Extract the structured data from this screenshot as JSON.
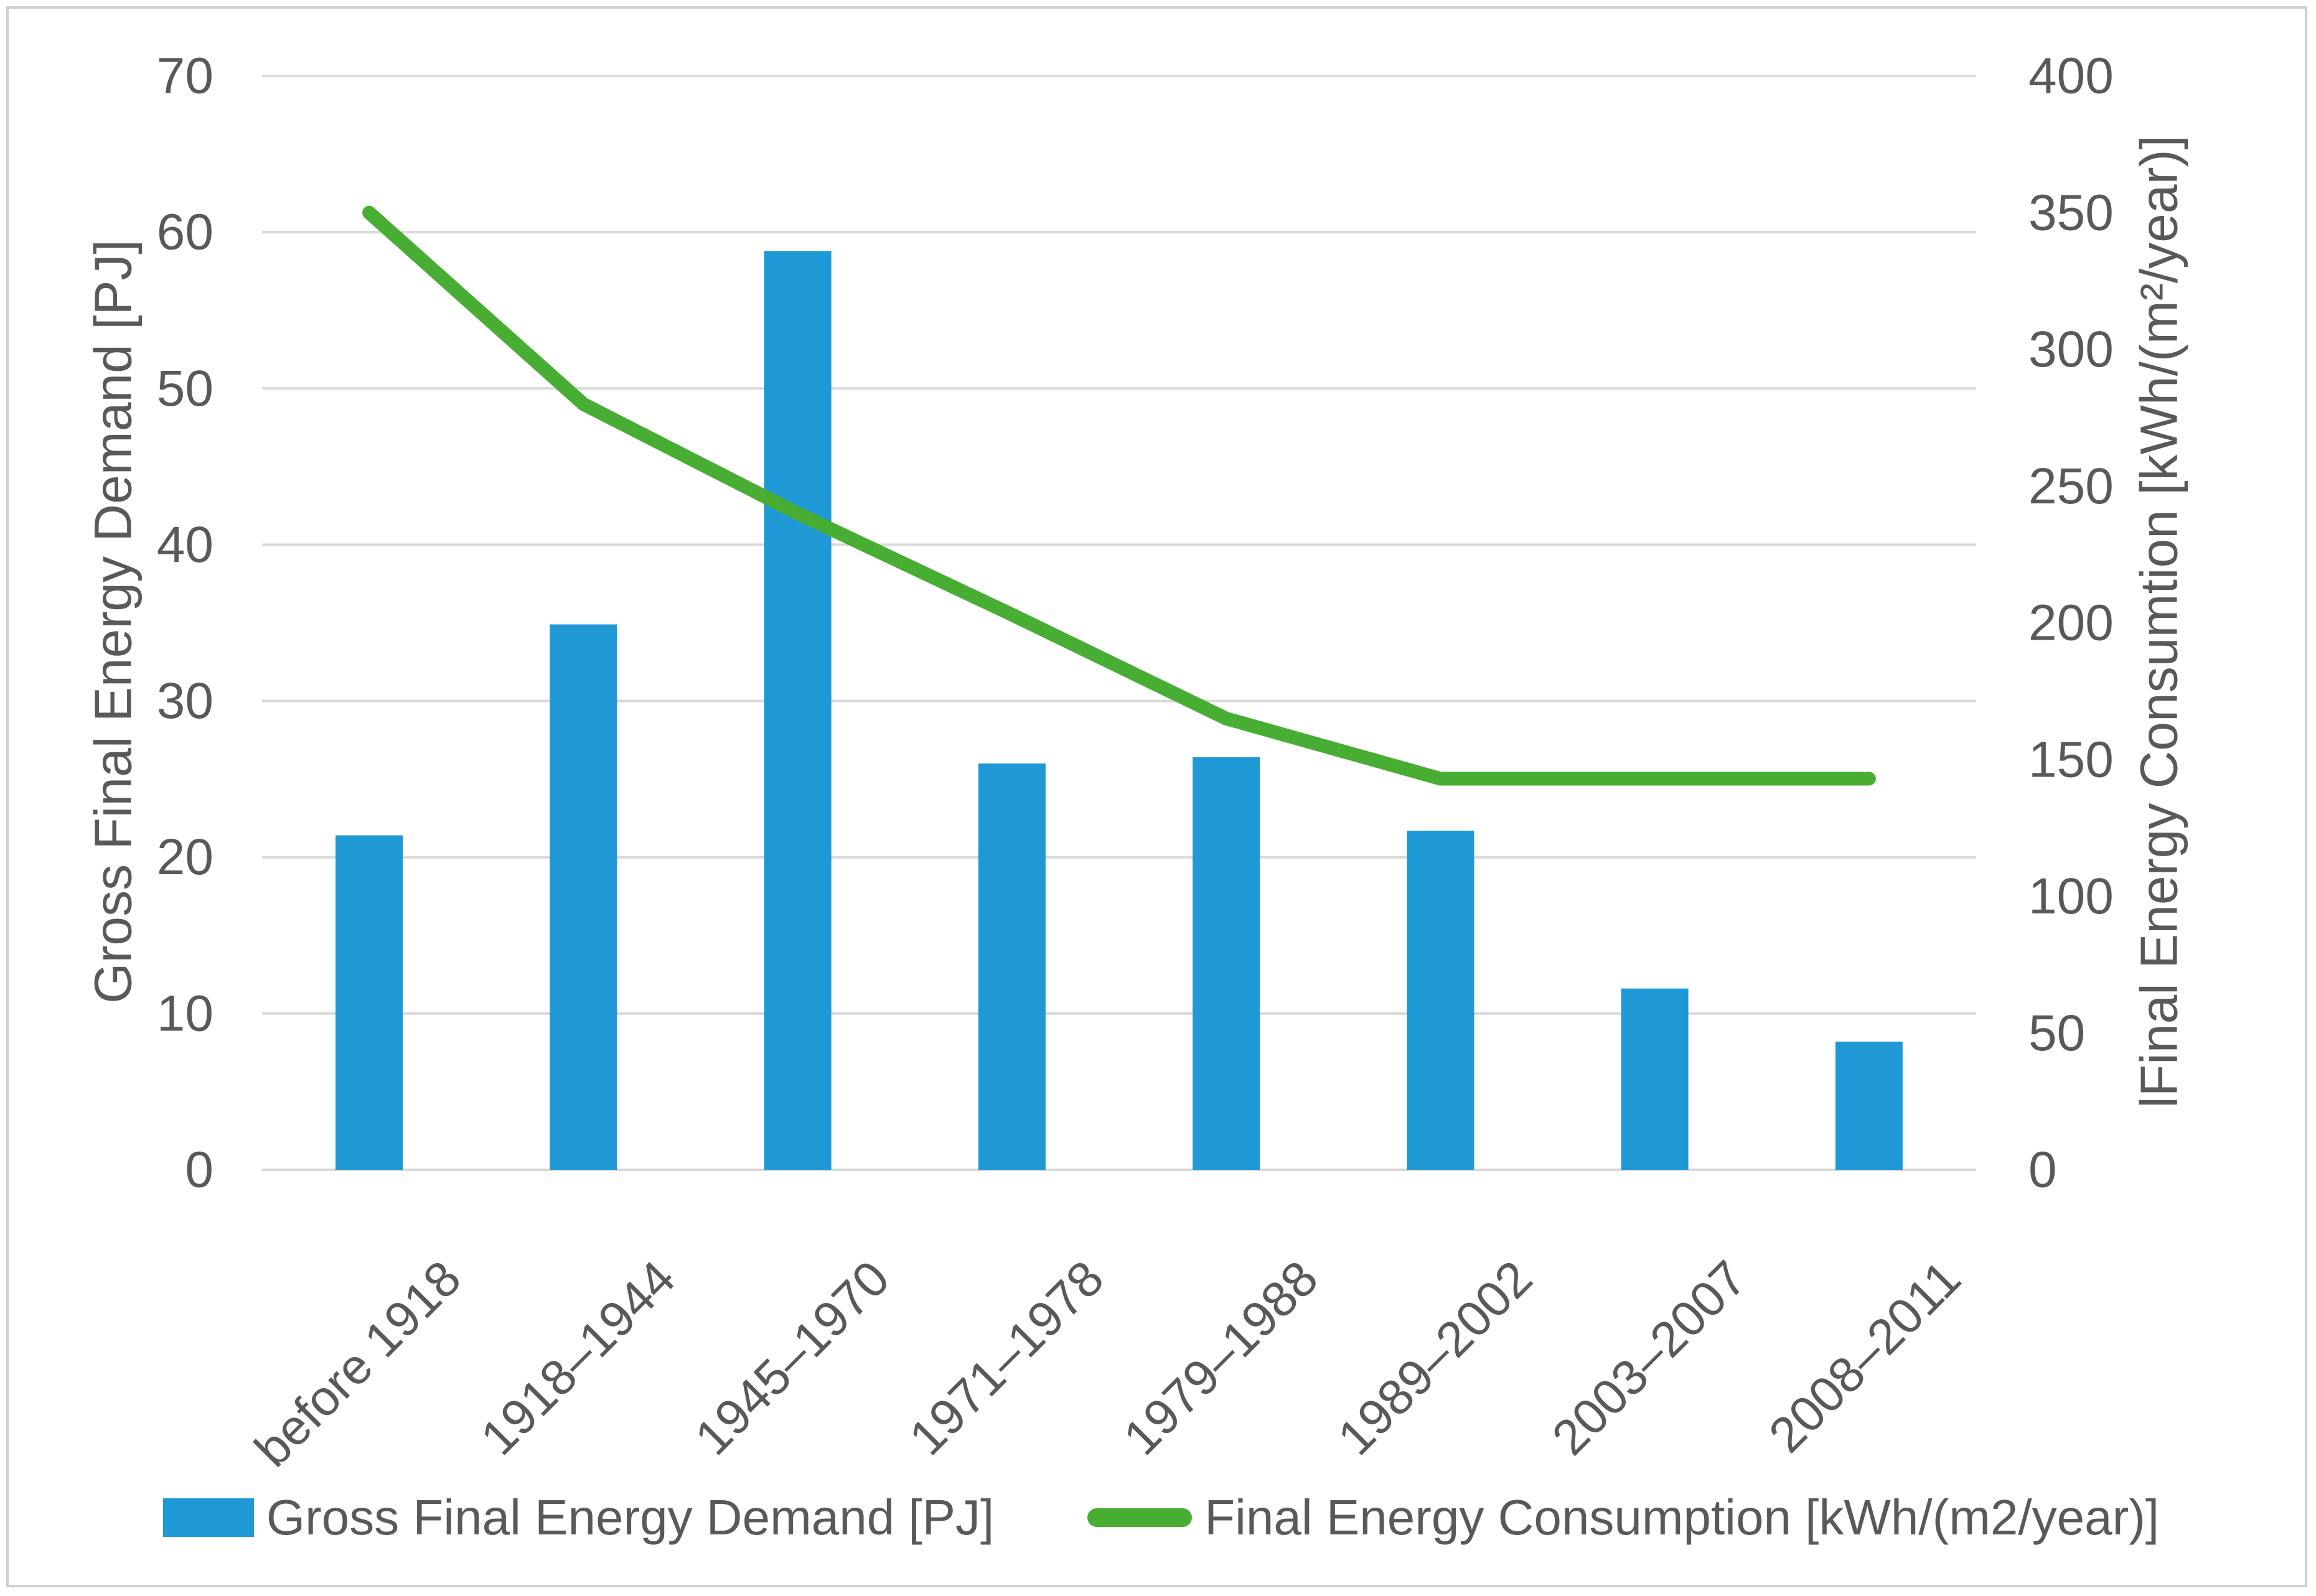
{
  "figure": {
    "background": "#ffffff",
    "border_color": "#cfcfcf"
  },
  "colors": {
    "bar_blue": "#1f99d6",
    "line_green": "#47ad33",
    "gridline_gray": "#d9d9d9",
    "text_gray": "#595959"
  },
  "chart_data": {
    "type": "combo",
    "subtype": [
      "bar",
      "line"
    ],
    "categories": [
      "before 1918",
      "1918–1944",
      "1945–1970",
      "1971–1978",
      "1979–1988",
      "1989–2002",
      "2003–2007",
      "2008–2011"
    ],
    "series": [
      {
        "name": "Gross Final Energy Demand [PJ]",
        "type": "bar",
        "axis": "left",
        "color": "#1f99d6",
        "values": [
          21.4,
          34.9,
          58.8,
          26.0,
          26.4,
          21.7,
          11.6,
          8.2
        ]
      },
      {
        "name": "Final Energy Consumption [kWh/(m2/year)]",
        "type": "line",
        "axis": "right",
        "color": "#47ad33",
        "values": [
          350,
          280,
          240,
          203,
          165,
          143,
          143,
          143
        ]
      }
    ],
    "left_axis": {
      "title": "Gross Final Energy Demand [PJ]",
      "min": 0,
      "max": 70,
      "step": 10,
      "ticks": [
        0,
        10,
        20,
        30,
        40,
        50,
        60,
        70
      ]
    },
    "right_axis": {
      "title": "lFinal Energy Consumtion [kWh/(m²/year)]",
      "min": 0,
      "max": 400,
      "step": 50,
      "ticks": [
        0,
        50,
        100,
        150,
        200,
        250,
        300,
        350,
        400
      ]
    },
    "grid": "horizontal-on",
    "legend_position": "bottom",
    "x_tick_rotation_deg": 45
  },
  "legend": {
    "items": [
      {
        "label": "Gross Final Energy Demand [PJ]",
        "swatch": "bar-swatch",
        "color": "#1f99d6"
      },
      {
        "label": "Final Energy Consumption [kWh/(m2/year)]",
        "swatch": "line-swatch",
        "color": "#47ad33"
      }
    ]
  }
}
